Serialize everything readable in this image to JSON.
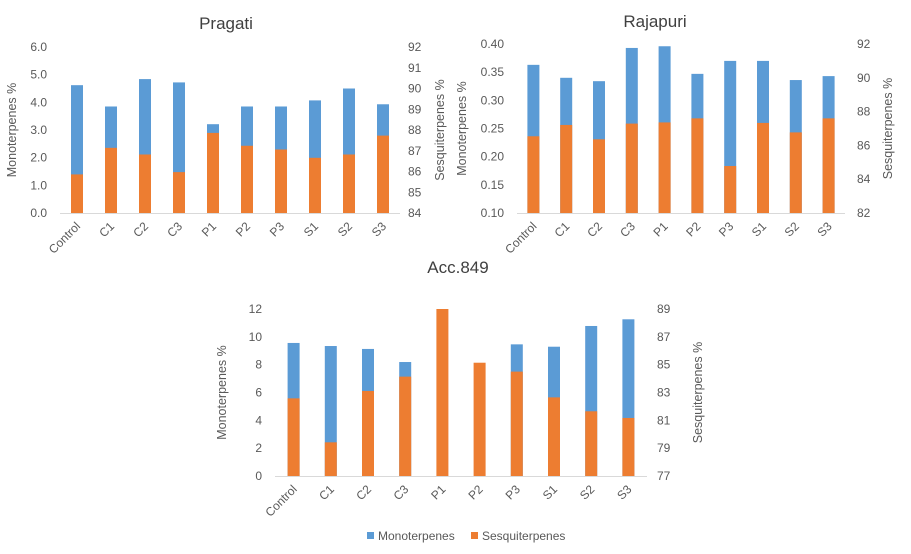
{
  "colors": {
    "Monoterpenes": "#5B9BD5",
    "Sesquiterpenes": "#ED7D31"
  },
  "legend": {
    "items": [
      "Monoterpenes",
      "Sesquiterpenes"
    ],
    "position": "bottom"
  },
  "chart_data": [
    {
      "type": "bar",
      "title": "Pragati",
      "categories": [
        "Control",
        "C1",
        "C2",
        "C3",
        "P1",
        "P2",
        "P3",
        "S1",
        "S2",
        "S3"
      ],
      "ylabel": "Monoterpenes %",
      "y2label": "Sesquiterpenes %",
      "ylim": [
        0,
        6
      ],
      "yticks": [
        "0.0",
        "1.0",
        "2.0",
        "3.0",
        "4.0",
        "5.0",
        "6.0"
      ],
      "y2lim": [
        84,
        92
      ],
      "y2ticks": [
        "84",
        "85",
        "86",
        "87",
        "88",
        "89",
        "90",
        "91",
        "92"
      ],
      "grid": false,
      "series": [
        {
          "name": "Monoterpenes",
          "axis": "left",
          "values": [
            4.62,
            3.85,
            4.84,
            4.72,
            3.21,
            3.85,
            3.85,
            4.07,
            4.5,
            3.93
          ]
        },
        {
          "name": "Sesquiterpenes",
          "axis": "right",
          "values": [
            85.86,
            87.14,
            86.82,
            85.97,
            87.86,
            87.24,
            87.06,
            86.66,
            86.82,
            87.73
          ]
        }
      ]
    },
    {
      "type": "bar",
      "title": "Rajapuri",
      "categories": [
        "Control",
        "C1",
        "C2",
        "C3",
        "P1",
        "P2",
        "P3",
        "S1",
        "S2",
        "S3"
      ],
      "ylabel": "Monoterpenes %",
      "y2label": "Sesquiterpenes %",
      "ylim": [
        0.1,
        0.4
      ],
      "yticks": [
        "0.10",
        "0.15",
        "0.20",
        "0.25",
        "0.30",
        "0.35",
        "0.40"
      ],
      "y2lim": [
        82,
        92
      ],
      "y2ticks": [
        "82",
        "84",
        "86",
        "88",
        "90",
        "92"
      ],
      "grid": false,
      "series": [
        {
          "name": "Monoterpenes",
          "axis": "left",
          "values": [
            0.363,
            0.34,
            0.334,
            0.393,
            0.396,
            0.347,
            0.37,
            0.37,
            0.336,
            0.343
          ]
        },
        {
          "name": "Sesquiterpenes",
          "axis": "right",
          "values": [
            86.54,
            87.21,
            86.36,
            87.29,
            87.36,
            87.6,
            84.78,
            87.33,
            86.77,
            87.6
          ]
        }
      ]
    },
    {
      "type": "bar",
      "title": "Acc.849",
      "categories": [
        "Control",
        "C1",
        "C2",
        "C3",
        "P1",
        "P2",
        "P3",
        "S1",
        "S2",
        "S3"
      ],
      "ylabel": "Monoterpenes %",
      "y2label": "Sesquiterpenes %",
      "ylim": [
        0,
        12
      ],
      "yticks": [
        "0",
        "2",
        "4",
        "6",
        "8",
        "10",
        "12"
      ],
      "y2lim": [
        77,
        89
      ],
      "y2ticks": [
        "77",
        "79",
        "81",
        "83",
        "85",
        "87",
        "89"
      ],
      "grid": false,
      "series": [
        {
          "name": "Monoterpenes",
          "axis": "left",
          "values": [
            9.56,
            9.34,
            9.13,
            8.19,
            null,
            null,
            9.46,
            9.29,
            10.78,
            11.26
          ]
        },
        {
          "name": "Sesquiterpenes",
          "axis": "right",
          "values": [
            82.58,
            79.42,
            83.11,
            84.14,
            89.0,
            85.14,
            84.5,
            82.65,
            81.65,
            81.17
          ]
        }
      ]
    }
  ]
}
